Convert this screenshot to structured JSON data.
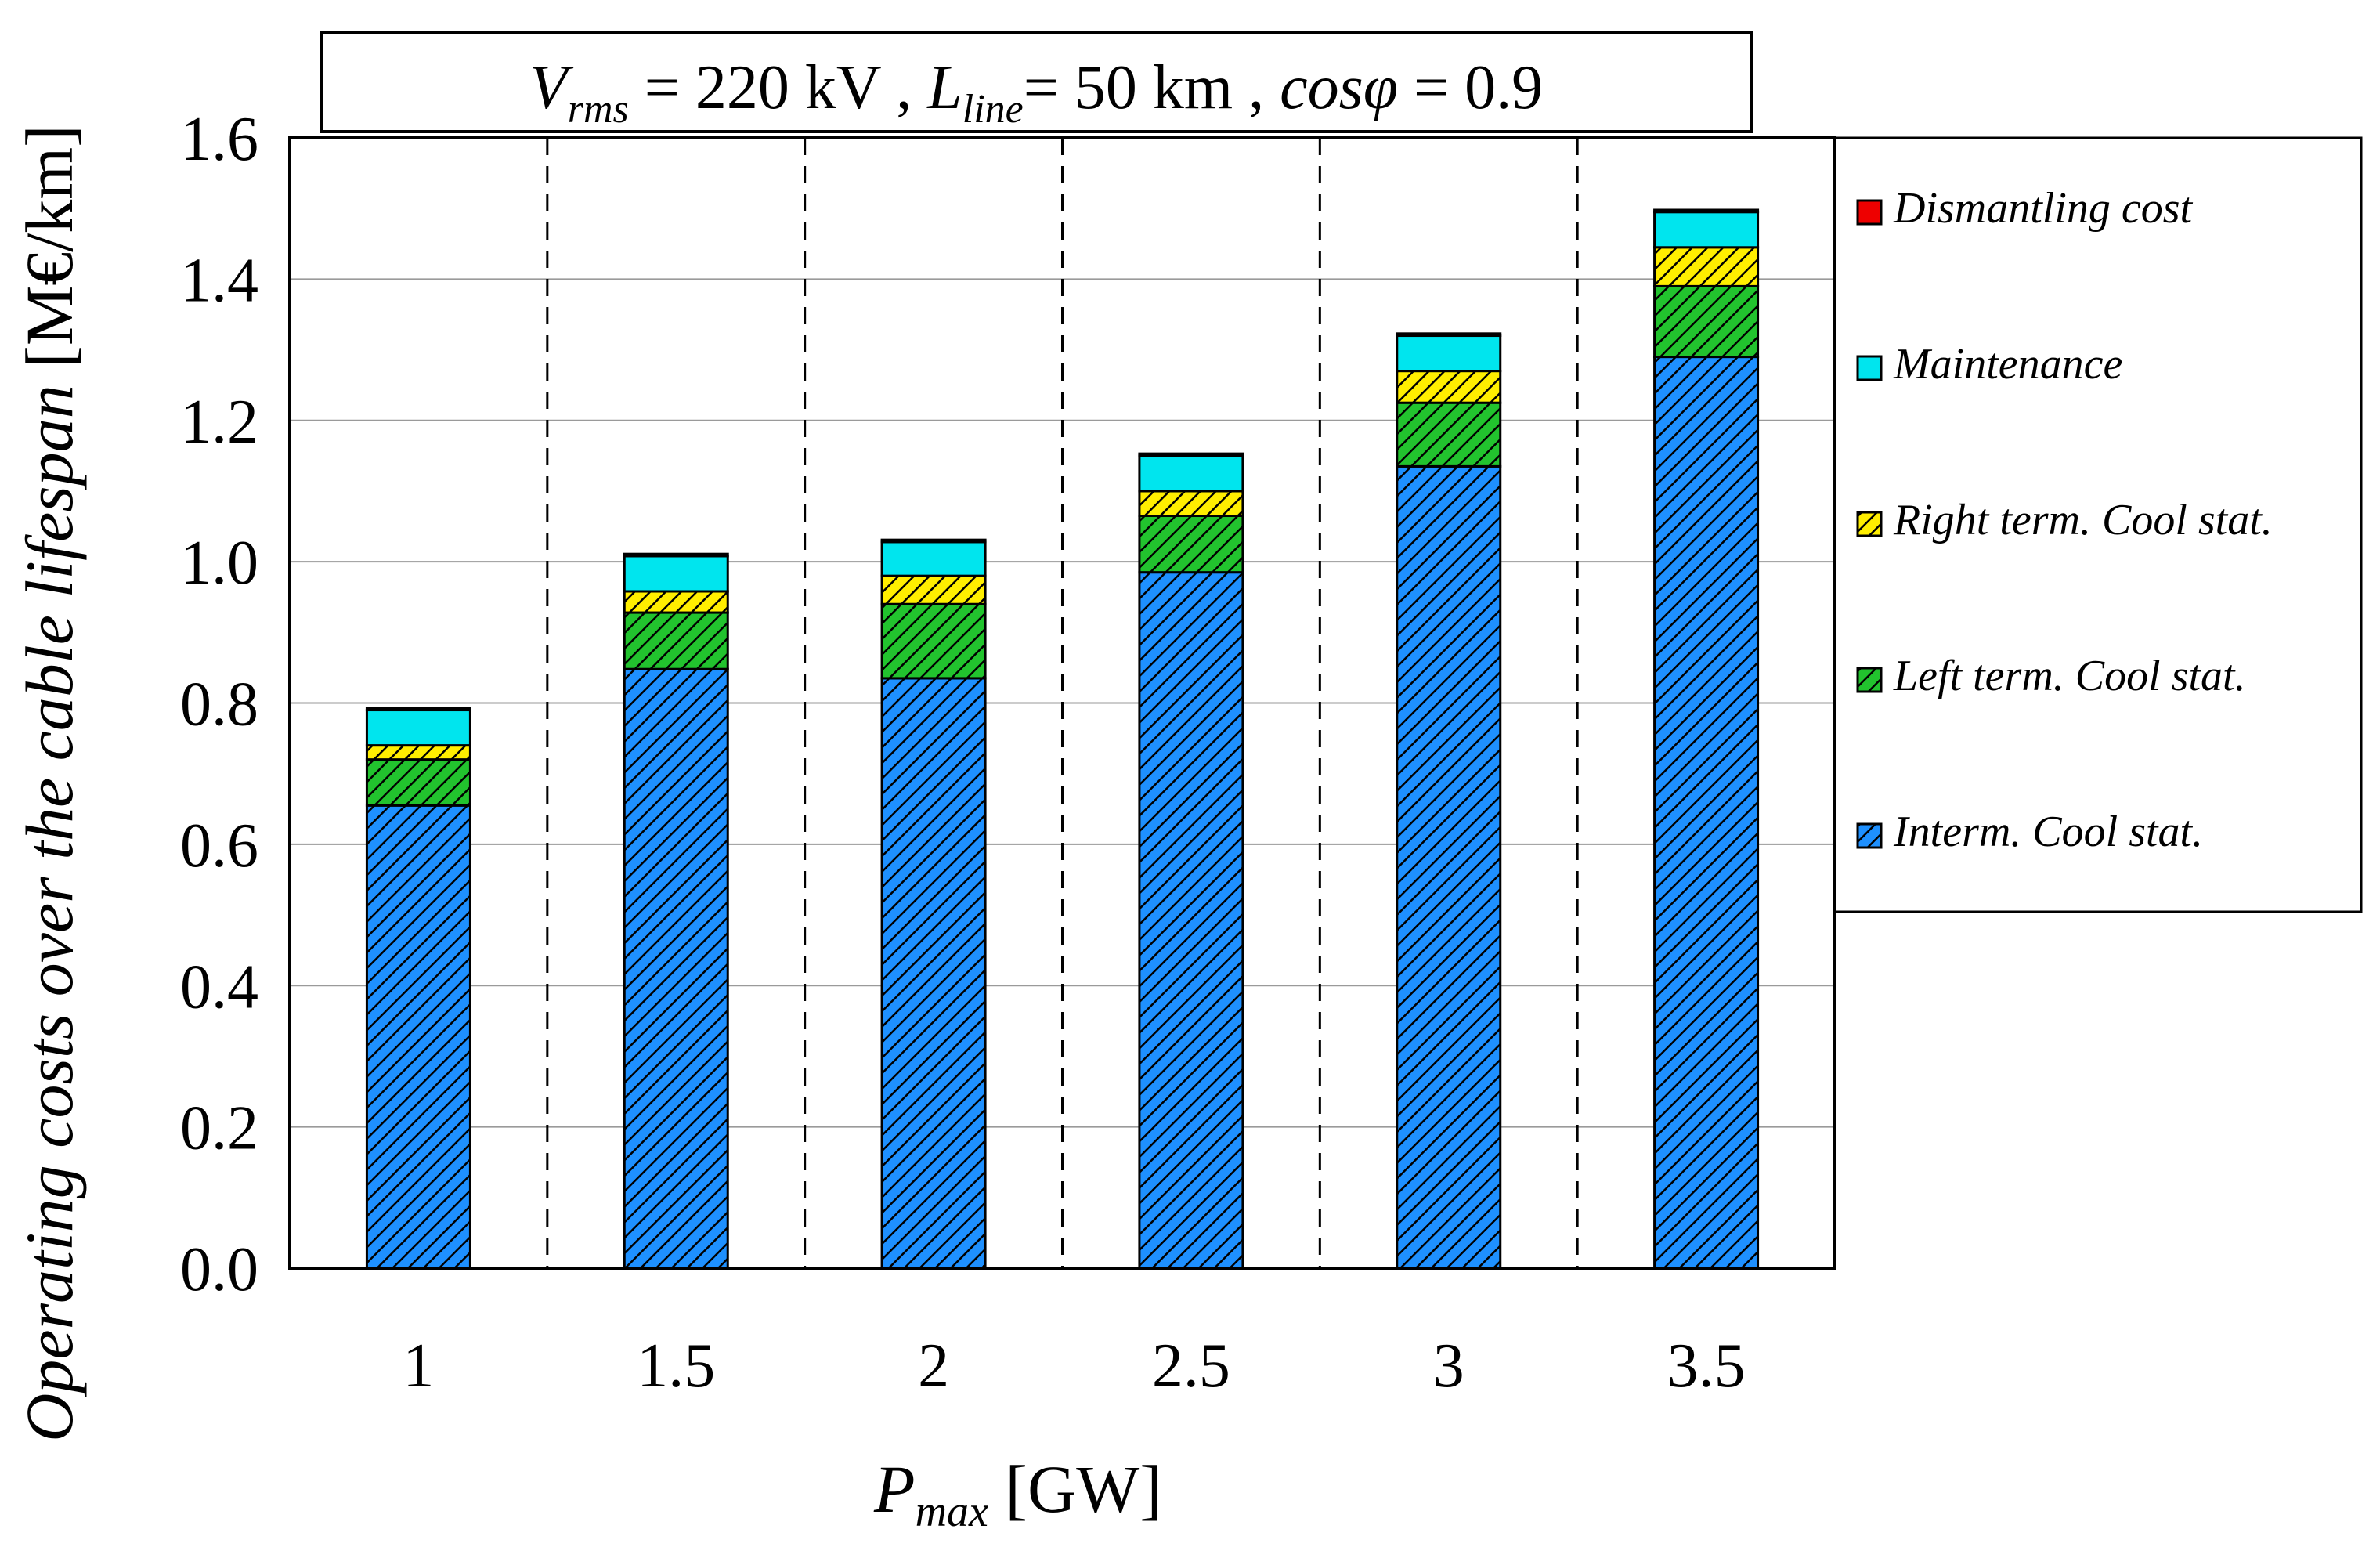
{
  "chart_data": {
    "type": "bar",
    "stacked": true,
    "title": {
      "v_symbol": "V",
      "v_sub": "rms",
      "v_value": " = 220 kV  ,  ",
      "l_symbol": "L",
      "l_sub": "line",
      "l_value": "= 50 km  ,  ",
      "cos_symbol": "cosφ",
      "cos_value": " = 0.9"
    },
    "xlabel": {
      "symbol": "P",
      "sub": "max",
      "unit": " [GW]"
    },
    "ylabel": "Operating costs over the cable lifespan",
    "ylabel_unit": " [M€/km]",
    "categories": [
      "1",
      "1.5",
      "2",
      "2.5",
      "3",
      "3.5"
    ],
    "ylim": [
      0,
      1.6
    ],
    "yticks": [
      "0.0",
      "0.2",
      "0.4",
      "0.6",
      "0.8",
      "1.0",
      "1.2",
      "1.4",
      "1.6"
    ],
    "grid": "horizontal",
    "legend_position": "right",
    "series": [
      {
        "name": "Interm. Cool stat.",
        "color": "#1e90ff",
        "hatch": true,
        "values": [
          0.655,
          0.848,
          0.835,
          0.985,
          1.135,
          1.29
        ]
      },
      {
        "name": "Left term. Cool stat.",
        "color": "#22c32e",
        "hatch": true,
        "values": [
          0.065,
          0.08,
          0.105,
          0.08,
          0.09,
          0.1
        ]
      },
      {
        "name": "Right term. Cool stat.",
        "color": "#ffee00",
        "hatch": true,
        "values": [
          0.02,
          0.03,
          0.04,
          0.035,
          0.045,
          0.055
        ]
      },
      {
        "name": "Maintenance",
        "color": "#00e5ee",
        "hatch": false,
        "values": [
          0.05,
          0.05,
          0.048,
          0.05,
          0.05,
          0.05
        ]
      },
      {
        "name": "Dismantling cost",
        "color": "#ee0000",
        "hatch": false,
        "values": [
          0.003,
          0.003,
          0.003,
          0.003,
          0.003,
          0.003
        ]
      }
    ]
  }
}
